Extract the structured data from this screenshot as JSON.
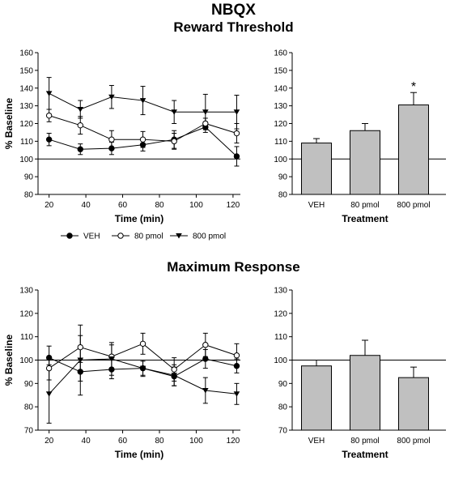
{
  "figure": {
    "title": "NBQX",
    "panel_titles": [
      "Reward Threshold",
      "Maximum Response"
    ]
  },
  "legend": {
    "items": [
      {
        "label": "VEH",
        "marker": "filled-circle"
      },
      {
        "label": "80 pmol",
        "marker": "open-circle"
      },
      {
        "label": "800 pmol",
        "marker": "filled-triangle-down"
      }
    ]
  },
  "chart_data": [
    {
      "type": "line",
      "section": "Reward Threshold",
      "xlabel": "Time (min)",
      "ylabel": "% Baseline",
      "xlim": [
        14,
        124
      ],
      "ylim": [
        80,
        160
      ],
      "xticks": [
        20,
        40,
        60,
        80,
        100,
        120
      ],
      "yticks": [
        80,
        90,
        100,
        110,
        120,
        130,
        140,
        150,
        160
      ],
      "reference_line": 100,
      "x": [
        20,
        37,
        54,
        71,
        88,
        105,
        122
      ],
      "series": [
        {
          "name": "VEH",
          "marker": "filled-circle",
          "values": [
            111,
            105.5,
            106,
            108,
            111,
            118,
            101.5
          ],
          "errors": [
            3.5,
            3,
            3.5,
            3.5,
            5,
            3,
            5.5
          ]
        },
        {
          "name": "80 pmol",
          "marker": "open-circle",
          "values": [
            124.5,
            119,
            111,
            111,
            110,
            120,
            114.5
          ],
          "errors": [
            3.5,
            5,
            5,
            4.5,
            4.5,
            3,
            5.5
          ]
        },
        {
          "name": "800 pmol",
          "marker": "filled-triangle-down",
          "values": [
            137,
            128,
            135,
            133,
            126.5,
            126.5,
            126.5
          ],
          "errors": [
            9,
            5,
            6.5,
            8,
            6.5,
            10,
            9.5
          ]
        }
      ]
    },
    {
      "type": "bar",
      "section": "Reward Threshold",
      "xlabel": "Treatment",
      "ylabel": "",
      "ylim": [
        80,
        160
      ],
      "yticks": [
        80,
        90,
        100,
        110,
        120,
        130,
        140,
        150,
        160
      ],
      "reference_line": 100,
      "categories": [
        "VEH",
        "80 pmol",
        "800 pmol"
      ],
      "values": [
        109,
        116,
        130.5
      ],
      "errors": [
        2.5,
        4,
        7
      ],
      "annotations": [
        {
          "category": "800 pmol",
          "text": "*"
        }
      ],
      "bar_color": "#c0c0c0"
    },
    {
      "type": "line",
      "section": "Maximum Response",
      "xlabel": "Time (min)",
      "ylabel": "% Baseline",
      "xlim": [
        14,
        124
      ],
      "ylim": [
        70,
        130
      ],
      "xticks": [
        20,
        40,
        60,
        80,
        100,
        120
      ],
      "yticks": [
        70,
        80,
        90,
        100,
        110,
        120,
        130
      ],
      "reference_line": 100,
      "x": [
        20,
        37,
        54,
        71,
        88,
        105,
        122
      ],
      "series": [
        {
          "name": "VEH",
          "marker": "filled-circle",
          "values": [
            101,
            95,
            96,
            96.5,
            93,
            100.5,
            97.5
          ],
          "errors": [
            5,
            4,
            4,
            3,
            4,
            4,
            3
          ]
        },
        {
          "name": "80 pmol",
          "marker": "open-circle",
          "values": [
            96.5,
            105.5,
            101.5,
            107,
            96,
            106.5,
            102
          ],
          "errors": [
            5,
            5,
            5,
            4.5,
            5,
            5,
            5
          ]
        },
        {
          "name": "800 pmol",
          "marker": "filled-triangle-down",
          "values": [
            85.5,
            100,
            100.5,
            96.5,
            93.5,
            87,
            85.5
          ],
          "errors": [
            12.5,
            15,
            7,
            3.5,
            4.5,
            5.5,
            4.5
          ]
        }
      ]
    },
    {
      "type": "bar",
      "section": "Maximum Response",
      "xlabel": "Treatment",
      "ylabel": "",
      "ylim": [
        70,
        130
      ],
      "yticks": [
        70,
        80,
        90,
        100,
        110,
        120,
        130
      ],
      "reference_line": 100,
      "categories": [
        "VEH",
        "80 pmol",
        "800 pmol"
      ],
      "values": [
        97.5,
        102,
        92.5
      ],
      "errors": [
        2.5,
        6.5,
        4.5
      ],
      "bar_color": "#c0c0c0"
    }
  ]
}
